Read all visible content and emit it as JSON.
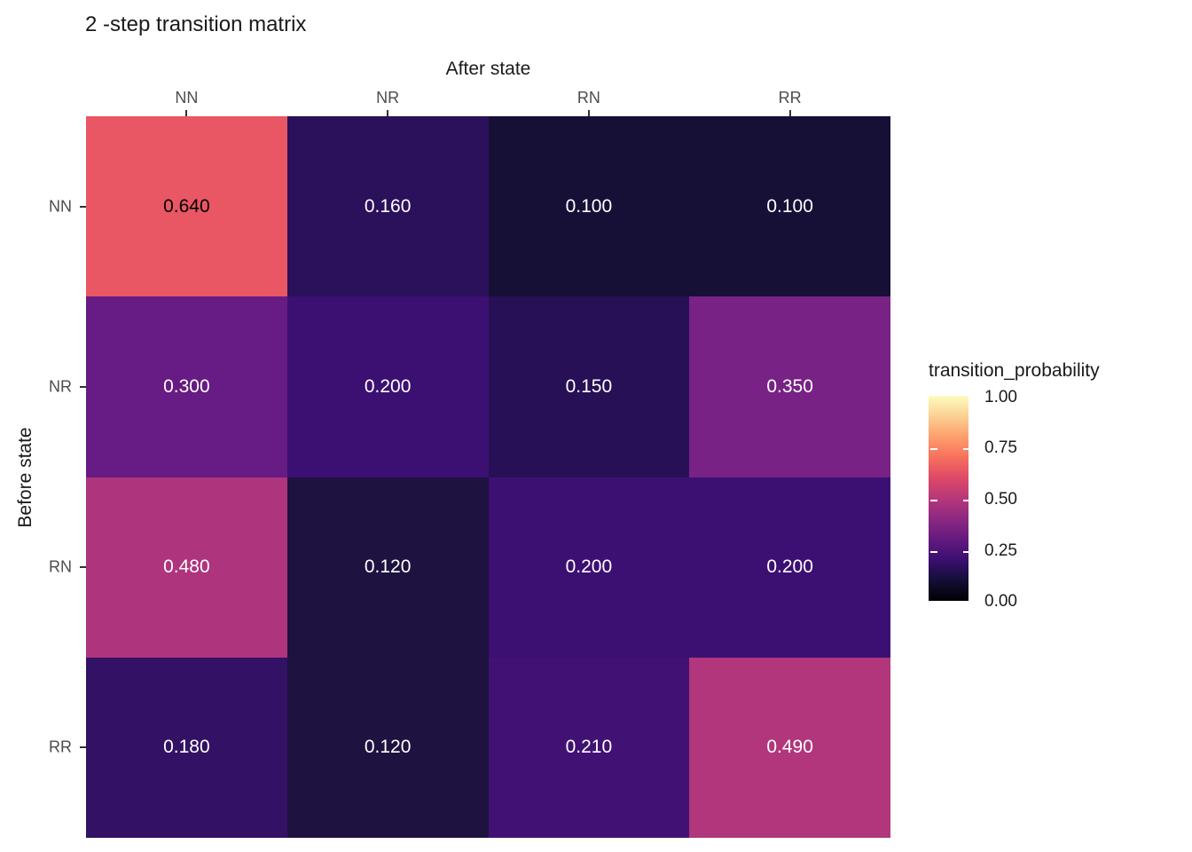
{
  "title": "2 -step transition matrix",
  "x_axis": {
    "title": "After state",
    "ticks": [
      "NN",
      "NR",
      "RN",
      "RR"
    ]
  },
  "y_axis": {
    "title": "Before state",
    "ticks": [
      "NN",
      "NR",
      "RN",
      "RR"
    ]
  },
  "legend": {
    "title": "transition_probability",
    "ticks": [
      "1.00",
      "0.75",
      "0.50",
      "0.25",
      "0.00"
    ],
    "range": [
      0,
      1
    ],
    "colormap": "magma",
    "gradient_stops": [
      "#000004",
      "#140e36",
      "#3b0f70",
      "#641a80",
      "#8c2981",
      "#b73779",
      "#de4968",
      "#f7705c",
      "#fe9f6d",
      "#fccf92",
      "#fcfdbf"
    ]
  },
  "chart_data": {
    "type": "heatmap",
    "title": "2 -step transition matrix",
    "xlabel": "After state",
    "ylabel": "Before state",
    "x_categories": [
      "NN",
      "NR",
      "RN",
      "RR"
    ],
    "y_categories": [
      "NN",
      "NR",
      "RN",
      "RR"
    ],
    "values": [
      [
        0.64,
        0.16,
        0.1,
        0.1
      ],
      [
        0.3,
        0.2,
        0.15,
        0.35
      ],
      [
        0.48,
        0.12,
        0.2,
        0.2
      ],
      [
        0.18,
        0.12,
        0.21,
        0.49
      ]
    ],
    "legend_title": "transition_probability",
    "legend_ticks": [
      1.0,
      0.75,
      0.5,
      0.25,
      0.0
    ],
    "color_range": [
      0,
      1
    ],
    "colormap": "magma",
    "legend_position": "right",
    "grid": false,
    "cells": [
      {
        "label": "0.640",
        "bg": "#e85763",
        "fg": "#000000"
      },
      {
        "label": "0.160",
        "bg": "#2b105c",
        "fg": "#ffffff"
      },
      {
        "label": "0.100",
        "bg": "#161037",
        "fg": "#ffffff"
      },
      {
        "label": "0.100",
        "bg": "#161037",
        "fg": "#ffffff"
      },
      {
        "label": "0.300",
        "bg": "#671b84",
        "fg": "#ffffff"
      },
      {
        "label": "0.200",
        "bg": "#3c1073",
        "fg": "#ffffff"
      },
      {
        "label": "0.150",
        "bg": "#271056",
        "fg": "#ffffff"
      },
      {
        "label": "0.350",
        "bg": "#782286",
        "fg": "#ffffff"
      },
      {
        "label": "0.480",
        "bg": "#ae347e",
        "fg": "#ffffff"
      },
      {
        "label": "0.120",
        "bg": "#1d1240",
        "fg": "#ffffff"
      },
      {
        "label": "0.200",
        "bg": "#3c1073",
        "fg": "#ffffff"
      },
      {
        "label": "0.200",
        "bg": "#3c1073",
        "fg": "#ffffff"
      },
      {
        "label": "0.180",
        "bg": "#331164",
        "fg": "#ffffff"
      },
      {
        "label": "0.120",
        "bg": "#1d1240",
        "fg": "#ffffff"
      },
      {
        "label": "0.210",
        "bg": "#411173",
        "fg": "#ffffff"
      },
      {
        "label": "0.490",
        "bg": "#b1367c",
        "fg": "#ffffff"
      }
    ]
  }
}
